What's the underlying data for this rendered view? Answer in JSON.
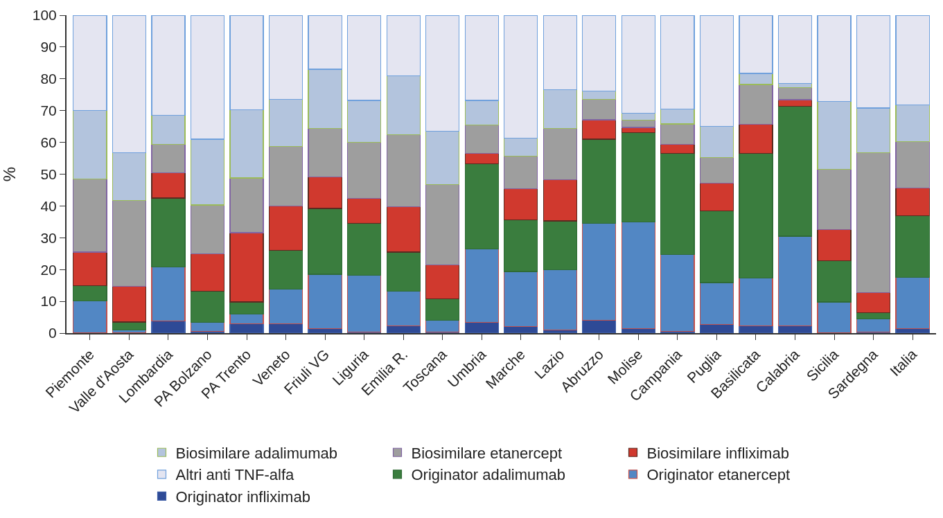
{
  "chart_data": {
    "type": "bar",
    "stacked": true,
    "ylabel": "%",
    "ylim": [
      0,
      100
    ],
    "yticks": [
      0,
      10,
      20,
      30,
      40,
      50,
      60,
      70,
      80,
      90,
      100
    ],
    "legend": "bottom",
    "categories": [
      "Piemonte",
      "Valle d'Aosta",
      "Lombardia",
      "PA Bolzano",
      "PA Trento",
      "Veneto",
      "Friuli VG",
      "Liguria",
      "Emilia R.",
      "Toscana",
      "Umbria",
      "Marche",
      "Lazio",
      "Abruzzo",
      "Molise",
      "Campania",
      "Puglia",
      "Basilicata",
      "Calabria",
      "Sicilia",
      "Sardegna",
      "Italia"
    ],
    "series": [
      {
        "name": "Originator infliximab",
        "color": "#2e4a96",
        "values": [
          0,
          0,
          3.8,
          0.5,
          3,
          3,
          1.5,
          0.3,
          2.3,
          0.3,
          3.3,
          2,
          1,
          4,
          1.5,
          0.5,
          2.7,
          2.3,
          2.3,
          0,
          0.3,
          1.5
        ]
      },
      {
        "name": "Originator etanercept",
        "color": "#5287c4",
        "values": [
          10.2,
          1,
          17,
          2.8,
          3,
          10.8,
          17,
          17.9,
          10.9,
          3.7,
          23.1,
          17.4,
          19,
          30.6,
          33.5,
          24.2,
          13.2,
          15,
          28.2,
          9.8,
          4.2,
          16.1
        ]
      },
      {
        "name": "Originator adalimumab",
        "color": "#3a7d3e",
        "values": [
          4.8,
          2.5,
          21.7,
          9.9,
          3.8,
          12.2,
          20.7,
          16.4,
          12.3,
          6.8,
          26.8,
          16.2,
          15.3,
          26.4,
          28,
          31.9,
          22.6,
          39.2,
          40.9,
          12.9,
          2,
          19.3
        ]
      },
      {
        "name": "Biosimilare infliximab",
        "color": "#d0392e",
        "values": [
          10.5,
          11.2,
          8,
          11.8,
          21.8,
          14,
          10,
          7.8,
          14.2,
          10.6,
          3.4,
          9.9,
          12.9,
          6.1,
          1.7,
          2.7,
          8.6,
          9.2,
          2,
          9.8,
          6.3,
          8.8
        ]
      },
      {
        "name": "Biosimilare etanercept",
        "color": "#9e9e9e",
        "values": [
          23,
          27.1,
          8.8,
          15.3,
          17.2,
          18.7,
          15.2,
          17.6,
          22.8,
          25.4,
          8.8,
          10.2,
          16.1,
          6.4,
          2.3,
          6.5,
          8.1,
          12.5,
          3.9,
          19,
          44,
          14.6
        ]
      },
      {
        "name": "Biosimilare adalimumab",
        "color": "#b3c4dd",
        "values": [
          21.5,
          14.9,
          9.2,
          20.7,
          21.4,
          14.9,
          18.6,
          13.2,
          18.5,
          16.7,
          7.8,
          5.6,
          12.3,
          2.7,
          2.1,
          4.7,
          9.9,
          3.5,
          1.2,
          21.3,
          14,
          11.5
        ]
      },
      {
        "name": "Altri anti TNF-alfa",
        "color": "#e4e5f1",
        "values": [
          30,
          43.3,
          31.5,
          39,
          29.8,
          26.4,
          17,
          26.8,
          19,
          36.5,
          26.8,
          38.7,
          23.4,
          23.8,
          30.9,
          29.5,
          34.9,
          18.3,
          21.5,
          27.2,
          29.2,
          28.2
        ]
      }
    ]
  }
}
